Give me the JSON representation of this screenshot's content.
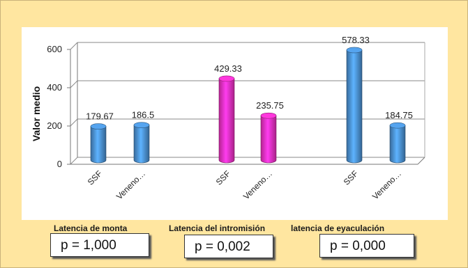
{
  "chart_data": {
    "type": "bar",
    "ylabel": "Valor medio",
    "ylim": [
      0,
      600
    ],
    "yticks": [
      "0",
      "200",
      "400",
      "600"
    ],
    "categories": [
      "SSF",
      "Veneno…",
      "SSF",
      "Veneno…",
      "SSF",
      "Veneno…"
    ],
    "values": [
      179.67,
      186.5,
      429.33,
      235.75,
      578.33,
      184.75
    ],
    "value_labels": [
      "179.67",
      "186.5",
      "429.33",
      "235.75",
      "578.33",
      "184.75"
    ],
    "bar_colors": [
      "#4a8fd0",
      "#4a8fd0",
      "#f030c0",
      "#f030c0",
      "#4a8fd0",
      "#4a8fd0"
    ],
    "groups": [
      "Latencia de monta",
      "Latencia del intromisión",
      "latencia de eyaculación"
    ],
    "p_values": [
      "p = 1,000",
      "p = 0,002",
      "p = 0,000"
    ]
  }
}
